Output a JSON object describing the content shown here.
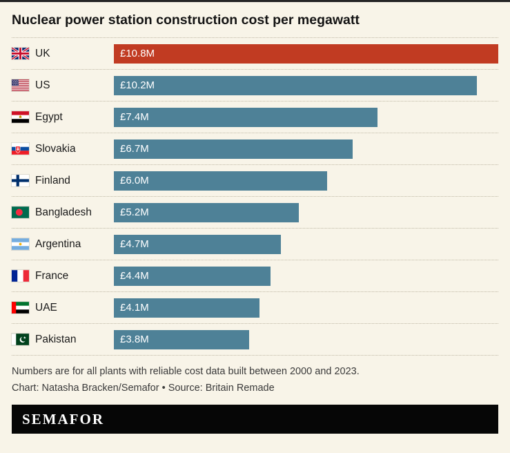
{
  "title": "Nuclear power station construction cost per megawatt",
  "colors": {
    "background": "#f8f4e8",
    "bar_default": "#4e8197",
    "bar_highlight": "#c13b22",
    "logo_background": "#060606",
    "dotted_line": "#bfb8a5"
  },
  "chart_data": {
    "type": "bar",
    "orientation": "horizontal",
    "title": "Nuclear power station construction cost per megawatt",
    "unit": "£M per megawatt",
    "categories": [
      "UK",
      "US",
      "Egypt",
      "Slovakia",
      "Finland",
      "Bangladesh",
      "Argentina",
      "France",
      "UAE",
      "Pakistan"
    ],
    "values": [
      10.8,
      10.2,
      7.4,
      6.7,
      6.0,
      5.2,
      4.7,
      4.4,
      4.1,
      3.8
    ],
    "value_labels": [
      "£10.8M",
      "£10.2M",
      "£7.4M",
      "£6.7M",
      "£6.0M",
      "£5.2M",
      "£4.7M",
      "£4.4M",
      "£4.1M",
      "£3.8M"
    ],
    "flags": [
      "uk",
      "us",
      "egypt",
      "slovakia",
      "finland",
      "bangladesh",
      "argentina",
      "france",
      "uae",
      "pakistan"
    ],
    "highlight_index": 0,
    "xlim": [
      0,
      10.8
    ],
    "grid": false,
    "legend": false
  },
  "footer": {
    "note": "Numbers are for all plants with reliable cost data built between 2000 and 2023.",
    "credit": "Chart: Natasha Bracken/Semafor • Source: Britain Remade",
    "logo": "SEMAFOR"
  }
}
